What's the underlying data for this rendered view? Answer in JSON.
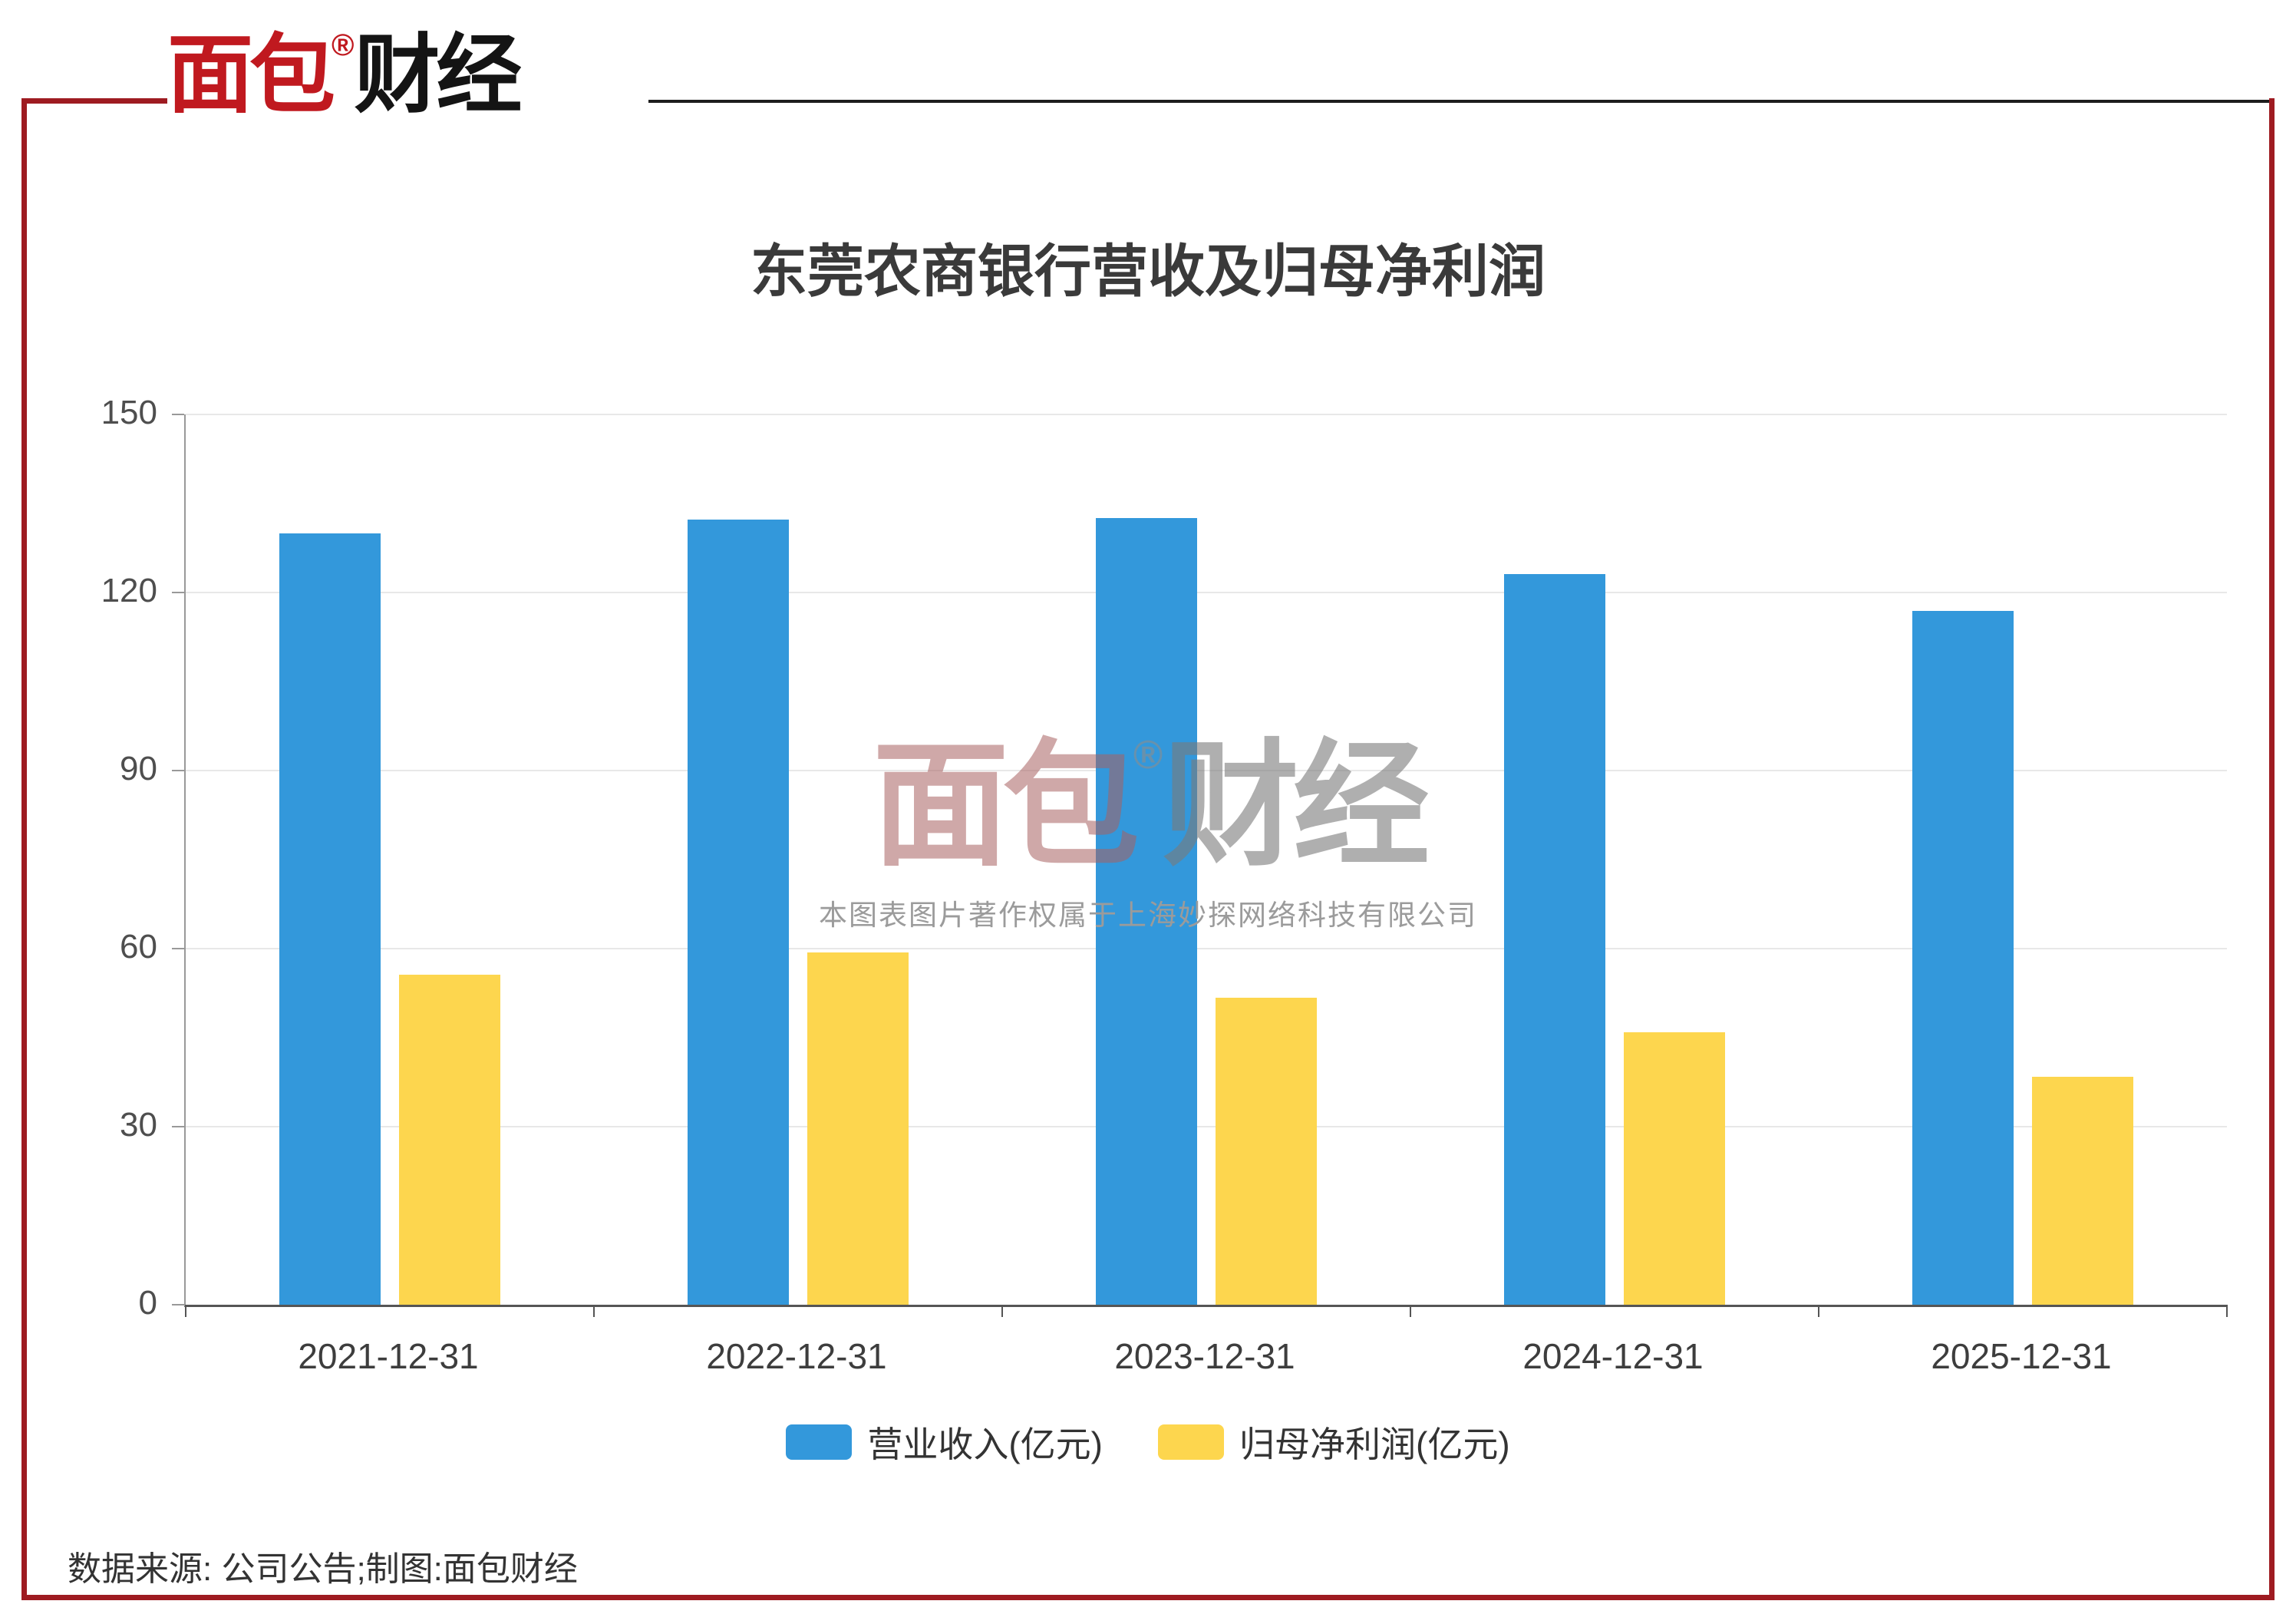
{
  "brand": {
    "logo_red": "面包",
    "logo_black": "财经",
    "reg_mark": "®"
  },
  "watermark": {
    "logo_red": "面包",
    "logo_black": "财经",
    "reg_mark": "®",
    "caption": "本图表图片著作权属于上海妙探网络科技有限公司"
  },
  "footer": {
    "source": "数据来源: 公司公告;制图:面包财经"
  },
  "colors": {
    "revenue_bar": "#3398DB",
    "profit_bar": "#FDD64E",
    "frame_red": "#9e1b21",
    "gridline": "#e8e8e8"
  },
  "chart_data": {
    "type": "bar",
    "title": "东莞农商银行营收及归母净利润",
    "categories": [
      "2021-12-31",
      "2022-12-31",
      "2023-12-31",
      "2024-12-31",
      "2025-12-31"
    ],
    "series": [
      {
        "name": "营业收入(亿元)",
        "color": "#3398DB",
        "values": [
          130.0,
          132.3,
          132.6,
          123.1,
          116.9
        ]
      },
      {
        "name": "归母净利润(亿元)",
        "color": "#FDD64E",
        "values": [
          55.6,
          59.3,
          51.7,
          45.9,
          38.4
        ]
      }
    ],
    "ylim": [
      0,
      150
    ],
    "y_ticks": [
      0,
      30,
      60,
      90,
      120,
      150
    ],
    "xlabel": "",
    "ylabel": "",
    "grid": true,
    "legend_position": "bottom"
  }
}
